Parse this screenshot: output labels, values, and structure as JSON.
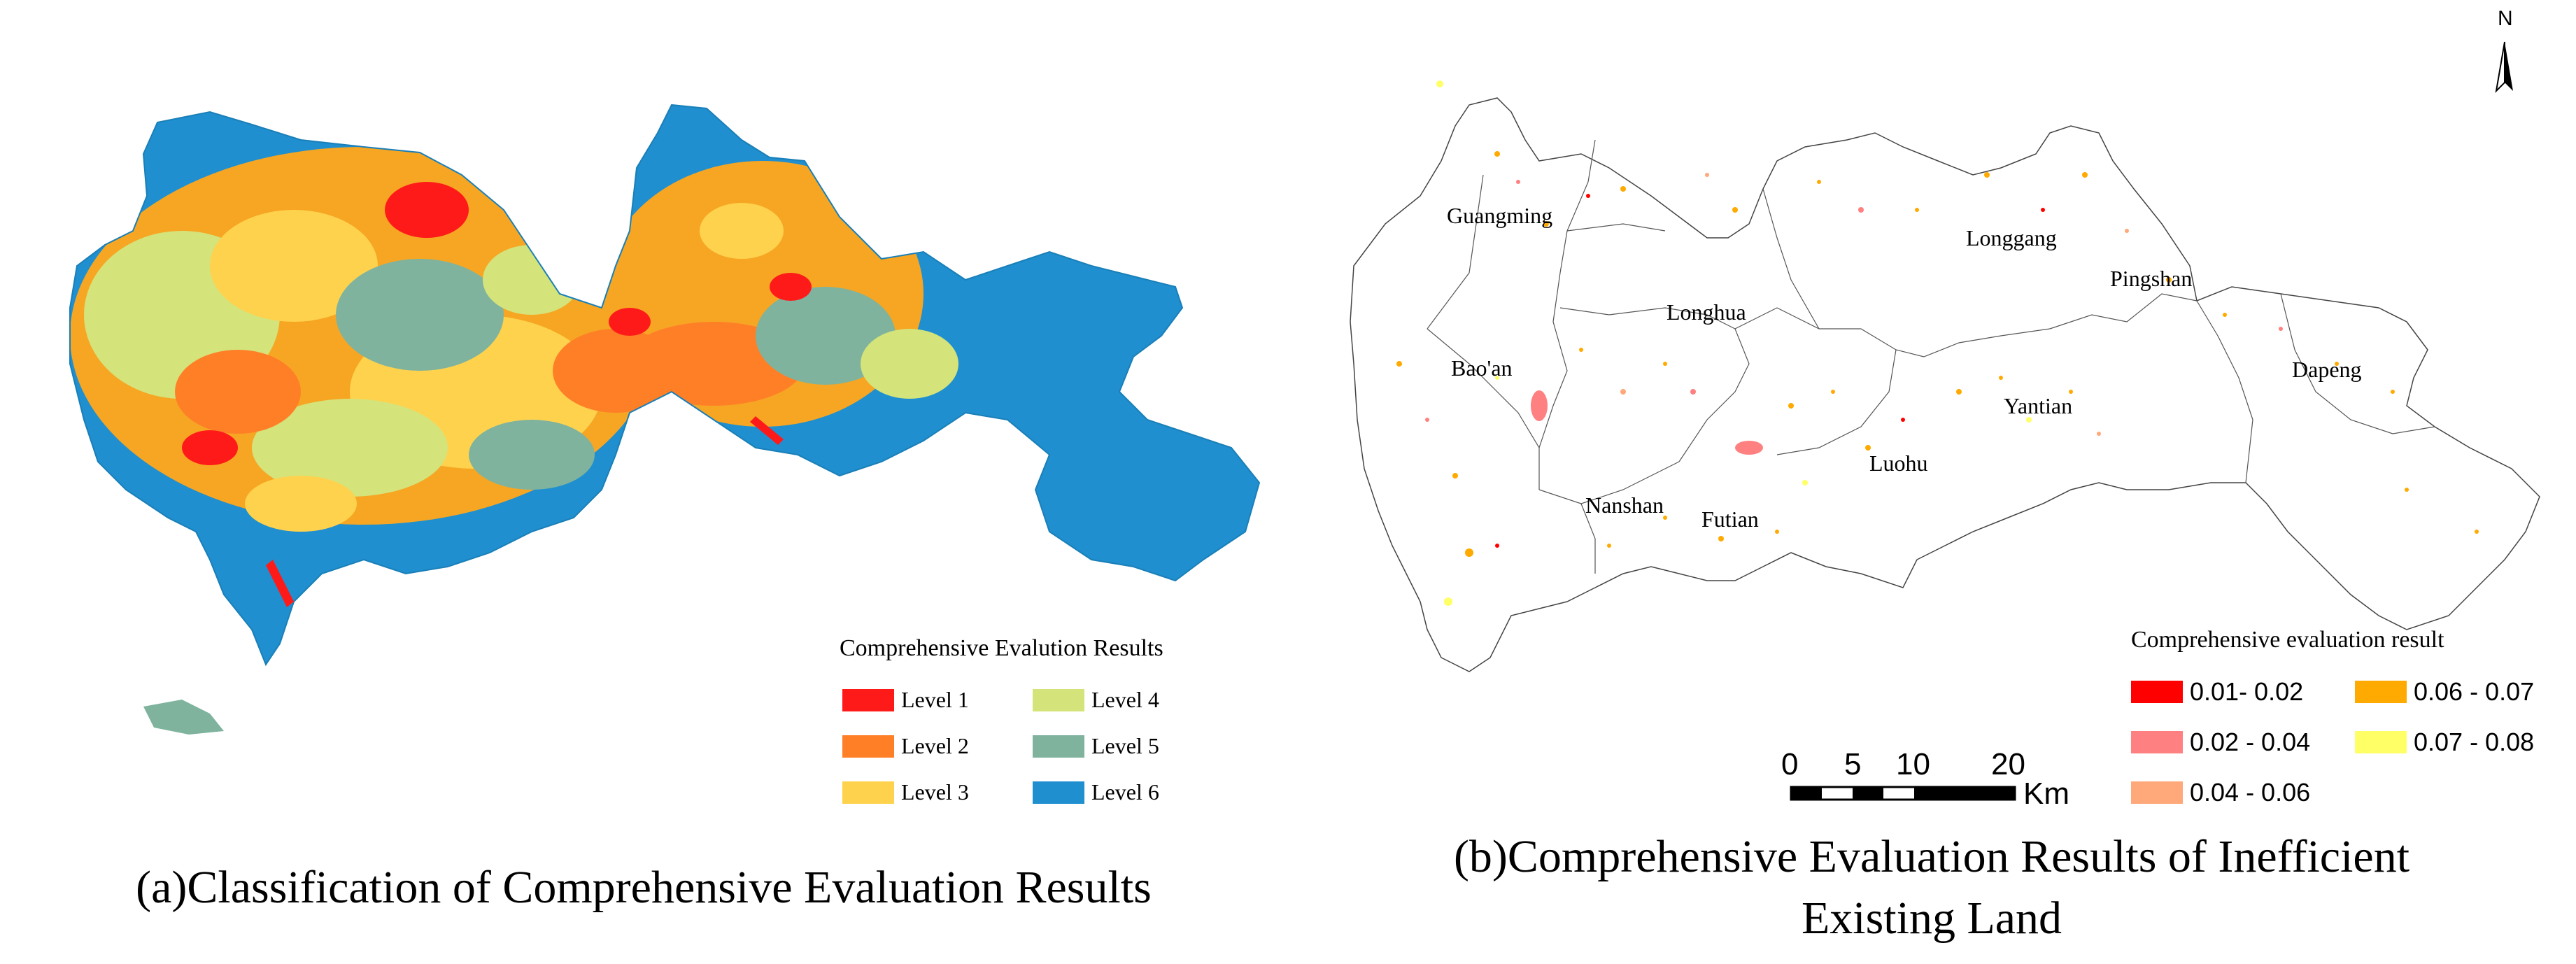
{
  "panel_a": {
    "caption": "(a)Classification of Comprehensive Evaluation Results",
    "legend": {
      "title": "Comprehensive Evalution Results",
      "items": [
        {
          "label": "Level 1",
          "color": "#ff1a1a"
        },
        {
          "label": "Level 2",
          "color": "#ff7f27"
        },
        {
          "label": "Level 3",
          "color": "#ffd24d"
        },
        {
          "label": "Level 4",
          "color": "#d4e37a"
        },
        {
          "label": "Level 5",
          "color": "#7fb39e"
        },
        {
          "label": "Level 6",
          "color": "#1f8fcf"
        }
      ]
    }
  },
  "panel_b": {
    "caption_line1": "(b)Comprehensive Evaluation Results of Inefficient",
    "caption_line2": "Existing Land",
    "north_label": "N",
    "districts": [
      "Guangming",
      "Longhua",
      "Bao'an",
      "Nanshan",
      "Futian",
      "Luohu",
      "Longgang",
      "Pingshan",
      "Yantian",
      "Dapeng"
    ],
    "scale_bar": {
      "ticks": [
        "0",
        "5",
        "10",
        "20"
      ],
      "unit": "Km"
    },
    "legend": {
      "title": "Comprehensive evaluation result",
      "items": [
        {
          "label": "0.01- 0.02",
          "color": "#ff0000"
        },
        {
          "label": "0.02 - 0.04",
          "color": "#ff8080"
        },
        {
          "label": "0.04 - 0.06",
          "color": "#ffa87a"
        },
        {
          "label": "0.06 - 0.07",
          "color": "#ffaa00"
        },
        {
          "label": "0.07 - 0.08",
          "color": "#ffff66"
        }
      ]
    }
  }
}
